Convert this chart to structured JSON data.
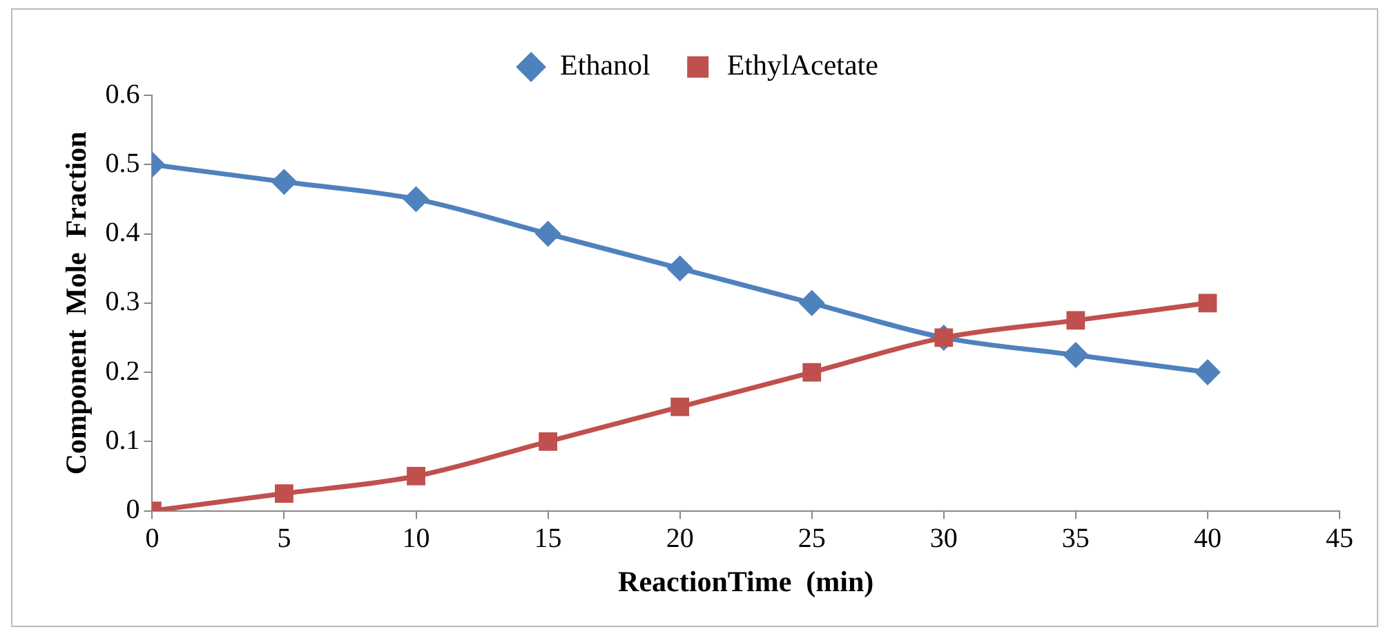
{
  "chart_data": {
    "type": "line",
    "xlabel": "ReactionTime  (min)",
    "ylabel": "Component  Mole  Fraction",
    "x": [
      0,
      5,
      10,
      15,
      20,
      25,
      30,
      35,
      40
    ],
    "series": [
      {
        "name": "Ethanol",
        "color": "#4f81bd",
        "marker": "diamond",
        "values": [
          0.5,
          0.475,
          0.45,
          0.4,
          0.35,
          0.3,
          0.25,
          0.225,
          0.2
        ]
      },
      {
        "name": "EthylAcetate",
        "color": "#c0504d",
        "marker": "square",
        "values": [
          0,
          0.025,
          0.05,
          0.1,
          0.15,
          0.2,
          0.25,
          0.275,
          0.3
        ]
      }
    ],
    "xlim": [
      0,
      45
    ],
    "xticks": [
      0,
      5,
      10,
      15,
      20,
      25,
      30,
      35,
      40,
      45
    ],
    "ylim": [
      0,
      0.6
    ],
    "yticks": [
      0,
      0.1,
      0.2,
      0.3,
      0.4,
      0.5,
      0.6
    ],
    "grid": false,
    "legend": "top",
    "line_style": "solid"
  }
}
